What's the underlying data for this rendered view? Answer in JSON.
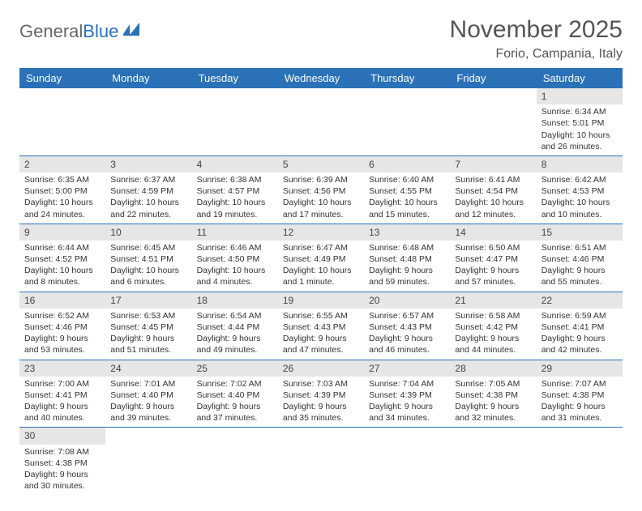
{
  "brand": {
    "part1": "General",
    "part2": "Blue"
  },
  "title": "November 2025",
  "location": "Forio, Campania, Italy",
  "colors": {
    "header_bg": "#2a71b8",
    "header_text": "#ffffff",
    "daynum_bg": "#e6e6e6",
    "cell_border": "#2a71b8",
    "title_color": "#555555",
    "text_color": "#333333",
    "background": "#ffffff"
  },
  "weekdays": [
    "Sunday",
    "Monday",
    "Tuesday",
    "Wednesday",
    "Thursday",
    "Friday",
    "Saturday"
  ],
  "leading_blanks": 6,
  "days": [
    {
      "n": "1",
      "sunrise": "Sunrise: 6:34 AM",
      "sunset": "Sunset: 5:01 PM",
      "daylight": "Daylight: 10 hours and 26 minutes."
    },
    {
      "n": "2",
      "sunrise": "Sunrise: 6:35 AM",
      "sunset": "Sunset: 5:00 PM",
      "daylight": "Daylight: 10 hours and 24 minutes."
    },
    {
      "n": "3",
      "sunrise": "Sunrise: 6:37 AM",
      "sunset": "Sunset: 4:59 PM",
      "daylight": "Daylight: 10 hours and 22 minutes."
    },
    {
      "n": "4",
      "sunrise": "Sunrise: 6:38 AM",
      "sunset": "Sunset: 4:57 PM",
      "daylight": "Daylight: 10 hours and 19 minutes."
    },
    {
      "n": "5",
      "sunrise": "Sunrise: 6:39 AM",
      "sunset": "Sunset: 4:56 PM",
      "daylight": "Daylight: 10 hours and 17 minutes."
    },
    {
      "n": "6",
      "sunrise": "Sunrise: 6:40 AM",
      "sunset": "Sunset: 4:55 PM",
      "daylight": "Daylight: 10 hours and 15 minutes."
    },
    {
      "n": "7",
      "sunrise": "Sunrise: 6:41 AM",
      "sunset": "Sunset: 4:54 PM",
      "daylight": "Daylight: 10 hours and 12 minutes."
    },
    {
      "n": "8",
      "sunrise": "Sunrise: 6:42 AM",
      "sunset": "Sunset: 4:53 PM",
      "daylight": "Daylight: 10 hours and 10 minutes."
    },
    {
      "n": "9",
      "sunrise": "Sunrise: 6:44 AM",
      "sunset": "Sunset: 4:52 PM",
      "daylight": "Daylight: 10 hours and 8 minutes."
    },
    {
      "n": "10",
      "sunrise": "Sunrise: 6:45 AM",
      "sunset": "Sunset: 4:51 PM",
      "daylight": "Daylight: 10 hours and 6 minutes."
    },
    {
      "n": "11",
      "sunrise": "Sunrise: 6:46 AM",
      "sunset": "Sunset: 4:50 PM",
      "daylight": "Daylight: 10 hours and 4 minutes."
    },
    {
      "n": "12",
      "sunrise": "Sunrise: 6:47 AM",
      "sunset": "Sunset: 4:49 PM",
      "daylight": "Daylight: 10 hours and 1 minute."
    },
    {
      "n": "13",
      "sunrise": "Sunrise: 6:48 AM",
      "sunset": "Sunset: 4:48 PM",
      "daylight": "Daylight: 9 hours and 59 minutes."
    },
    {
      "n": "14",
      "sunrise": "Sunrise: 6:50 AM",
      "sunset": "Sunset: 4:47 PM",
      "daylight": "Daylight: 9 hours and 57 minutes."
    },
    {
      "n": "15",
      "sunrise": "Sunrise: 6:51 AM",
      "sunset": "Sunset: 4:46 PM",
      "daylight": "Daylight: 9 hours and 55 minutes."
    },
    {
      "n": "16",
      "sunrise": "Sunrise: 6:52 AM",
      "sunset": "Sunset: 4:46 PM",
      "daylight": "Daylight: 9 hours and 53 minutes."
    },
    {
      "n": "17",
      "sunrise": "Sunrise: 6:53 AM",
      "sunset": "Sunset: 4:45 PM",
      "daylight": "Daylight: 9 hours and 51 minutes."
    },
    {
      "n": "18",
      "sunrise": "Sunrise: 6:54 AM",
      "sunset": "Sunset: 4:44 PM",
      "daylight": "Daylight: 9 hours and 49 minutes."
    },
    {
      "n": "19",
      "sunrise": "Sunrise: 6:55 AM",
      "sunset": "Sunset: 4:43 PM",
      "daylight": "Daylight: 9 hours and 47 minutes."
    },
    {
      "n": "20",
      "sunrise": "Sunrise: 6:57 AM",
      "sunset": "Sunset: 4:43 PM",
      "daylight": "Daylight: 9 hours and 46 minutes."
    },
    {
      "n": "21",
      "sunrise": "Sunrise: 6:58 AM",
      "sunset": "Sunset: 4:42 PM",
      "daylight": "Daylight: 9 hours and 44 minutes."
    },
    {
      "n": "22",
      "sunrise": "Sunrise: 6:59 AM",
      "sunset": "Sunset: 4:41 PM",
      "daylight": "Daylight: 9 hours and 42 minutes."
    },
    {
      "n": "23",
      "sunrise": "Sunrise: 7:00 AM",
      "sunset": "Sunset: 4:41 PM",
      "daylight": "Daylight: 9 hours and 40 minutes."
    },
    {
      "n": "24",
      "sunrise": "Sunrise: 7:01 AM",
      "sunset": "Sunset: 4:40 PM",
      "daylight": "Daylight: 9 hours and 39 minutes."
    },
    {
      "n": "25",
      "sunrise": "Sunrise: 7:02 AM",
      "sunset": "Sunset: 4:40 PM",
      "daylight": "Daylight: 9 hours and 37 minutes."
    },
    {
      "n": "26",
      "sunrise": "Sunrise: 7:03 AM",
      "sunset": "Sunset: 4:39 PM",
      "daylight": "Daylight: 9 hours and 35 minutes."
    },
    {
      "n": "27",
      "sunrise": "Sunrise: 7:04 AM",
      "sunset": "Sunset: 4:39 PM",
      "daylight": "Daylight: 9 hours and 34 minutes."
    },
    {
      "n": "28",
      "sunrise": "Sunrise: 7:05 AM",
      "sunset": "Sunset: 4:38 PM",
      "daylight": "Daylight: 9 hours and 32 minutes."
    },
    {
      "n": "29",
      "sunrise": "Sunrise: 7:07 AM",
      "sunset": "Sunset: 4:38 PM",
      "daylight": "Daylight: 9 hours and 31 minutes."
    },
    {
      "n": "30",
      "sunrise": "Sunrise: 7:08 AM",
      "sunset": "Sunset: 4:38 PM",
      "daylight": "Daylight: 9 hours and 30 minutes."
    }
  ]
}
